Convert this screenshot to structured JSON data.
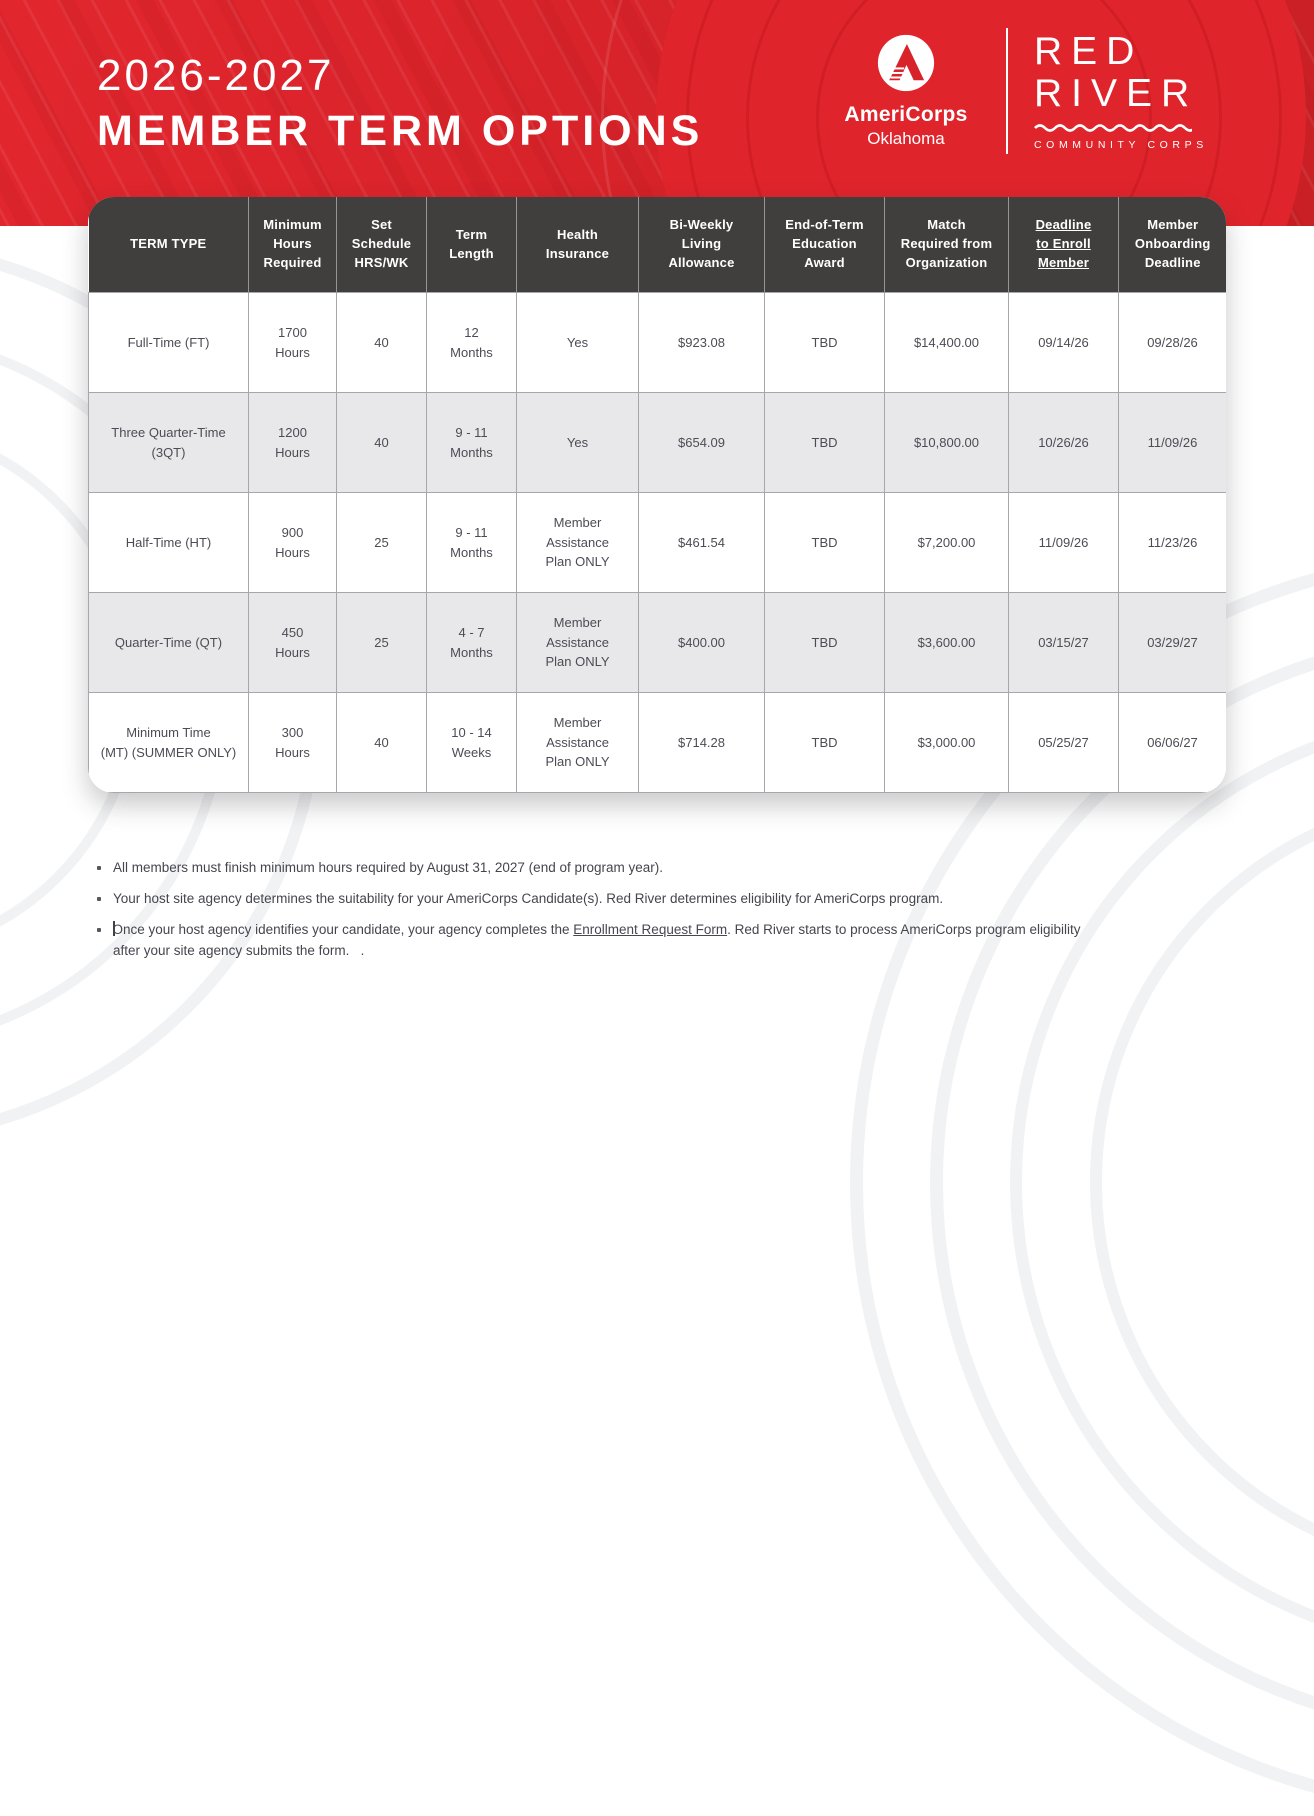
{
  "title": {
    "line1": "2026-2027",
    "line2": "MEMBER TERM OPTIONS"
  },
  "brand": {
    "americorps": {
      "name": "AmeriCorps",
      "region": "Oklahoma"
    },
    "redriver": {
      "line1": "RED",
      "line2": "RIVER",
      "tagline": "COMMUNITY CORPS"
    }
  },
  "colors": {
    "brand_red": "#d8232a",
    "header_dark": "#413e3e",
    "row_alt": "#e8e8ea",
    "body_text": "#4c4c55"
  },
  "table": {
    "columns": [
      {
        "label": "TERM TYPE"
      },
      {
        "label": "Minimum\nHours\nRequired"
      },
      {
        "label": "Set\nSchedule\nHRS/WK"
      },
      {
        "label": "Term\nLength"
      },
      {
        "label": "Health\nInsurance"
      },
      {
        "label": "Bi-Weekly\nLiving\nAllowance"
      },
      {
        "label": "End-of-Term\nEducation\nAward"
      },
      {
        "label": "Match\nRequired from\nOrganization"
      },
      {
        "label": "Deadline\nto Enroll\nMember",
        "underline": true
      },
      {
        "label": "Member\nOnboarding\nDeadline"
      }
    ],
    "rows": [
      [
        "Full-Time (FT)",
        "1700\nHours",
        "40",
        "12\nMonths",
        "Yes",
        "$923.08",
        "TBD",
        "$14,400.00",
        "09/14/26",
        "09/28/26"
      ],
      [
        "Three Quarter-Time\n(3QT)",
        "1200\nHours",
        "40",
        "9 - 11\nMonths",
        "Yes",
        "$654.09",
        "TBD",
        "$10,800.00",
        "10/26/26",
        "11/09/26"
      ],
      [
        "Half-Time (HT)",
        "900\nHours",
        "25",
        "9 - 11\nMonths",
        "Member\nAssistance\nPlan ONLY",
        "$461.54",
        "TBD",
        "$7,200.00",
        "11/09/26",
        "11/23/26"
      ],
      [
        "Quarter-Time (QT)",
        "450\nHours",
        "25",
        "4 - 7\nMonths",
        "Member\nAssistance\nPlan ONLY",
        "$400.00",
        "TBD",
        "$3,600.00",
        "03/15/27",
        "03/29/27"
      ],
      [
        "Minimum Time\n(MT) (SUMMER ONLY)",
        "300\nHours",
        "40",
        "10 - 14\nWeeks",
        "Member\nAssistance\nPlan ONLY",
        "$714.28",
        "TBD",
        "$3,000.00",
        "05/25/27",
        "06/06/27"
      ]
    ]
  },
  "notes": {
    "items": [
      {
        "text": "All members must finish minimum hours required by August 31, 2027 (end of program year)."
      },
      {
        "text": "Your host site agency determines the suitability for your AmeriCorps Candidate(s). Red River determines eligibility for AmeriCorps program."
      },
      {
        "pre": "Once your host agency identifies your candidate, your agency completes the ",
        "link": "Enrollment Request Form",
        "post": ". Red River starts to process AmeriCorps program eligibility after your site agency submits the form.   ."
      }
    ]
  }
}
